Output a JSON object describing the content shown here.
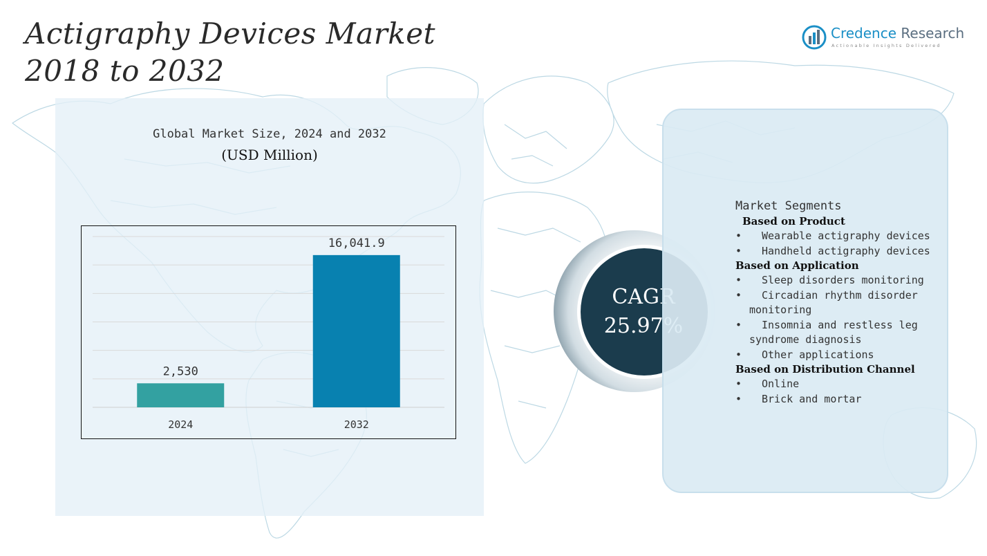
{
  "title": {
    "line1": "Actigraphy Devices Market",
    "line2": "2018 to 2032"
  },
  "brand": {
    "name_accent": "Credence",
    "name_rest": " Research",
    "tagline": "Actionable Insights Delivered"
  },
  "chart_data": {
    "type": "bar",
    "title": "Global Market Size, 2024 and 2032",
    "subtitle": "(USD Million)",
    "categories": [
      "2024",
      "2032"
    ],
    "values": [
      2530,
      16041.9
    ],
    "value_labels": [
      "2,530",
      "16,041.9"
    ],
    "colors": [
      "#33a1a1",
      "#0881b0"
    ],
    "grid": true,
    "ylim": [
      0,
      18000
    ]
  },
  "cagr": {
    "label": "CAGR",
    "value": "25.97%"
  },
  "segments": {
    "title": "Market Segments",
    "groups": [
      {
        "heading": "Based on Product",
        "items": [
          "Wearable actigraphy devices",
          "Handheld actigraphy devices"
        ]
      },
      {
        "heading": "Based on Application",
        "items": [
          "Sleep disorders monitoring",
          "Circadian rhythm disorder monitoring",
          "Insomnia and restless leg syndrome diagnosis",
          "Other applications"
        ]
      },
      {
        "heading": "Based on Distribution Channel",
        "items": [
          "Online",
          "Brick and mortar"
        ]
      }
    ]
  },
  "bullet": "•",
  "colors": {
    "cagr_circle": "#1b3c4d",
    "panel_bg": "#e4f0f7",
    "segments_bg": "#daeaf3",
    "map_lines": "#bcd8e4"
  }
}
